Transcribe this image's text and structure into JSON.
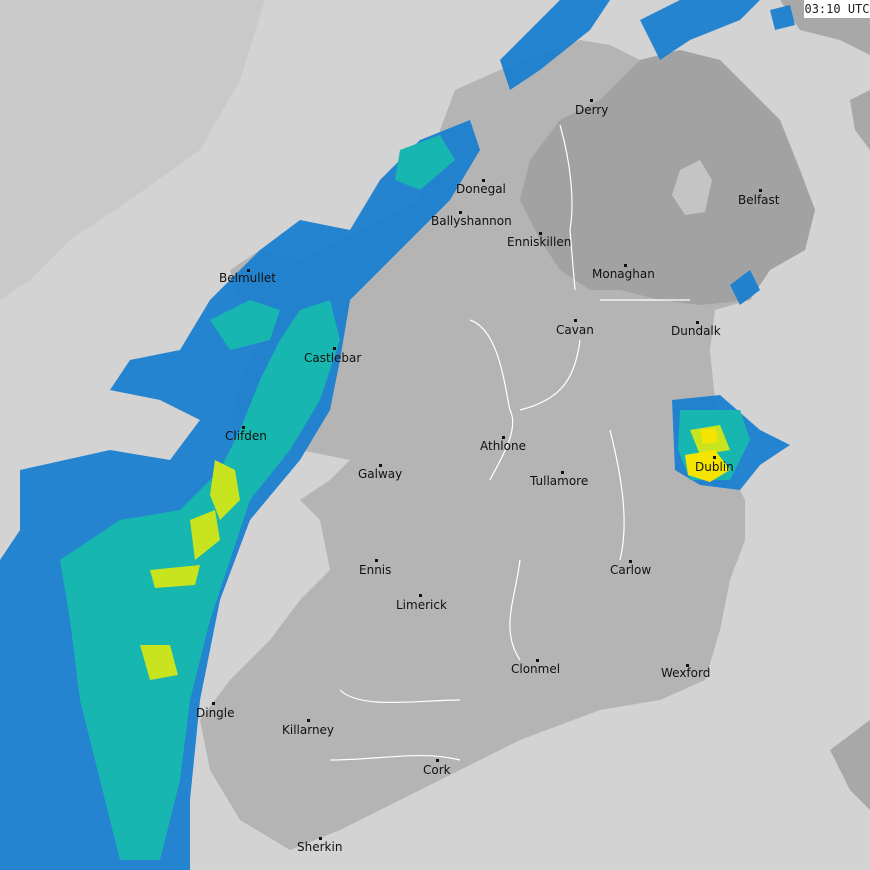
{
  "timestamp": "03:10 UTC",
  "colors": {
    "sea": "#d3d3d3",
    "deep_sea": "#c9c9c9",
    "republic_land": "#b4b4b4",
    "northern_ireland_land": "#a2a2a2",
    "rain_light": "#1a7fd0",
    "rain_moderate": "#17b6b0",
    "rain_heavy": "#c8e41e",
    "rain_intense": "#f5e400"
  },
  "cities": [
    {
      "name": "Derry"
    },
    {
      "name": "Donegal"
    },
    {
      "name": "Ballyshannon"
    },
    {
      "name": "Enniskillen"
    },
    {
      "name": "Belfast"
    },
    {
      "name": "Monaghan"
    },
    {
      "name": "Belmullet"
    },
    {
      "name": "Cavan"
    },
    {
      "name": "Dundalk"
    },
    {
      "name": "Castlebar"
    },
    {
      "name": "Clifden"
    },
    {
      "name": "Athlone"
    },
    {
      "name": "Galway"
    },
    {
      "name": "Tullamore"
    },
    {
      "name": "Dublin"
    },
    {
      "name": "Ennis"
    },
    {
      "name": "Carlow"
    },
    {
      "name": "Limerick"
    },
    {
      "name": "Clonmel"
    },
    {
      "name": "Wexford"
    },
    {
      "name": "Dingle"
    },
    {
      "name": "Killarney"
    },
    {
      "name": "Cork"
    },
    {
      "name": "Sherkin"
    }
  ]
}
